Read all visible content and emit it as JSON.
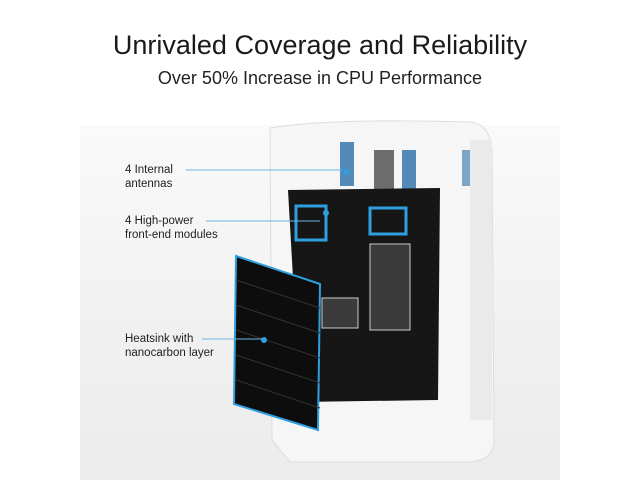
{
  "header": {
    "title": "Unrivaled Coverage and Reliability",
    "subtitle": "Over 50% Increase in CPU Performance"
  },
  "callouts": [
    {
      "line1": "4 Internal",
      "line2": "antennas"
    },
    {
      "line1": "4 High-power",
      "line2": "front-end modules"
    },
    {
      "line1": "Heatsink with",
      "line2": "nanocarbon layer"
    }
  ],
  "colors": {
    "accent": "#2f9fe0",
    "board": "#161616",
    "housing": "#f4f4f4"
  }
}
